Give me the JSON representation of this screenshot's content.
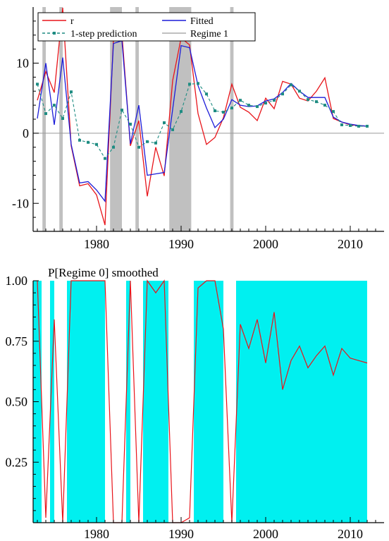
{
  "colors": {
    "r": "#e8141a",
    "fitted": "#1c1cd8",
    "prediction": "#1e8c82",
    "regime_band": "#c0c0c0",
    "prob_fill": "#00f0f0",
    "zero_line": "#9a9a9a",
    "axis": "#000000"
  },
  "chart_data": [
    {
      "type": "line",
      "xlim": [
        1972.5,
        2014
      ],
      "ylim": [
        -14,
        18
      ],
      "xticks": [
        1980,
        1990,
        2000,
        2010
      ],
      "xtick_labels": [
        "1980",
        "1990",
        "2000",
        "2010"
      ],
      "yticks": [
        -10,
        0,
        10
      ],
      "ytick_labels": [
        "-10",
        "0",
        "10"
      ],
      "zero_line": true,
      "legend": {
        "placement": "top-left",
        "entries": [
          {
            "key": "r",
            "label": "r"
          },
          {
            "key": "fitted",
            "label": "Fitted"
          },
          {
            "key": "prediction",
            "label": "1-step prediction"
          },
          {
            "key": "regime",
            "label": "Regime 1"
          }
        ]
      },
      "regime_spans": [
        [
          1973.6,
          1974.0
        ],
        [
          1975.6,
          1976.0
        ],
        [
          1981.6,
          1983.0
        ],
        [
          1984.6,
          1985.0
        ],
        [
          1988.6,
          1991.2
        ],
        [
          1995.8,
          1996.2
        ]
      ],
      "x": [
        1973,
        1974,
        1975,
        1976,
        1977,
        1978,
        1979,
        1980,
        1981,
        1982,
        1983,
        1984,
        1985,
        1986,
        1987,
        1988,
        1989,
        1990,
        1991,
        1992,
        1993,
        1994,
        1995,
        1996,
        1997,
        1998,
        1999,
        2000,
        2001,
        2002,
        2003,
        2004,
        2005,
        2006,
        2007,
        2008,
        2009,
        2010,
        2011,
        2012
      ],
      "series": [
        {
          "key": "r",
          "name": "r",
          "values": [
            4.7,
            8.8,
            5.8,
            17.9,
            -1.8,
            -7.5,
            -7.2,
            -8.8,
            -13.1,
            13.5,
            14.2,
            -1.8,
            1.8,
            -9.0,
            -2.0,
            -6.1,
            7.5,
            13.6,
            12.6,
            2.8,
            -1.6,
            -0.6,
            2.2,
            7.0,
            3.7,
            3.0,
            1.8,
            5.0,
            3.5,
            7.4,
            7.0,
            5.0,
            4.6,
            6.0,
            7.9,
            2.1,
            1.6,
            1.2,
            1.1,
            1.0
          ]
        },
        {
          "key": "fitted",
          "name": "Fitted",
          "values": [
            2.1,
            10.0,
            1.2,
            10.8,
            -1.6,
            -7.1,
            -6.9,
            -8.1,
            -9.7,
            12.8,
            13.2,
            -1.5,
            4.0,
            -6.0,
            -5.8,
            -5.6,
            3.4,
            12.5,
            12.2,
            6.8,
            3.6,
            0.8,
            2.0,
            4.8,
            4.0,
            3.8,
            3.9,
            4.6,
            4.9,
            5.8,
            7.1,
            6.0,
            5.1,
            5.1,
            5.1,
            2.3,
            1.6,
            1.3,
            1.1,
            1.0
          ]
        },
        {
          "key": "prediction",
          "name": "1-step prediction",
          "values": [
            7.0,
            2.8,
            4.0,
            2.1,
            5.9,
            -1.0,
            -1.3,
            -1.6,
            -3.6,
            -2.0,
            3.3,
            1.3,
            -2.0,
            -1.2,
            -1.4,
            1.5,
            0.5,
            3.1,
            7.0,
            7.1,
            5.6,
            3.2,
            3.0,
            3.6,
            4.7,
            4.0,
            3.8,
            4.3,
            4.7,
            5.6,
            6.9,
            6.0,
            4.8,
            4.5,
            4.0,
            3.1,
            1.2,
            1.1,
            1.0,
            1.0
          ]
        }
      ]
    },
    {
      "type": "area",
      "title": "P[Regime 0] smoothed",
      "xlim": [
        1972.5,
        2014
      ],
      "ylim": [
        0,
        1
      ],
      "xticks": [
        1980,
        1990,
        2000,
        2010
      ],
      "xtick_labels": [
        "1980",
        "1990",
        "2000",
        "2010"
      ],
      "yticks": [
        0.25,
        0.5,
        0.75,
        1.0
      ],
      "ytick_labels": [
        "0.25",
        "0.50",
        "0.75",
        "1.00"
      ],
      "regime0_spans": [
        [
          1972.5,
          1973.5
        ],
        [
          1974.5,
          1975.0
        ],
        [
          1976.5,
          1981.0
        ],
        [
          1983.5,
          1984.0
        ],
        [
          1985.5,
          1988.5
        ],
        [
          1991.5,
          1995.0
        ],
        [
          1996.5,
          2012.0
        ]
      ],
      "x": [
        1973,
        1974,
        1975,
        1976,
        1977,
        1978,
        1979,
        1980,
        1981,
        1982,
        1983,
        1984,
        1985,
        1986,
        1987,
        1988,
        1989,
        1990,
        1991,
        1992,
        1993,
        1994,
        1995,
        1996,
        1997,
        1998,
        1999,
        2000,
        2001,
        2002,
        2003,
        2004,
        2005,
        2006,
        2007,
        2008,
        2009,
        2010,
        2011,
        2012
      ],
      "series": [
        {
          "key": "r",
          "values": [
            1.0,
            0.02,
            0.84,
            0.0,
            1.0,
            1.0,
            1.0,
            1.0,
            1.0,
            0.0,
            0.0,
            1.0,
            0.0,
            1.0,
            0.95,
            1.0,
            0.0,
            0.0,
            0.02,
            0.97,
            1.0,
            1.0,
            0.8,
            0.0,
            0.82,
            0.72,
            0.84,
            0.66,
            0.87,
            0.55,
            0.67,
            0.73,
            0.64,
            0.69,
            0.73,
            0.61,
            0.72,
            0.68,
            0.67,
            0.66
          ]
        }
      ]
    }
  ]
}
